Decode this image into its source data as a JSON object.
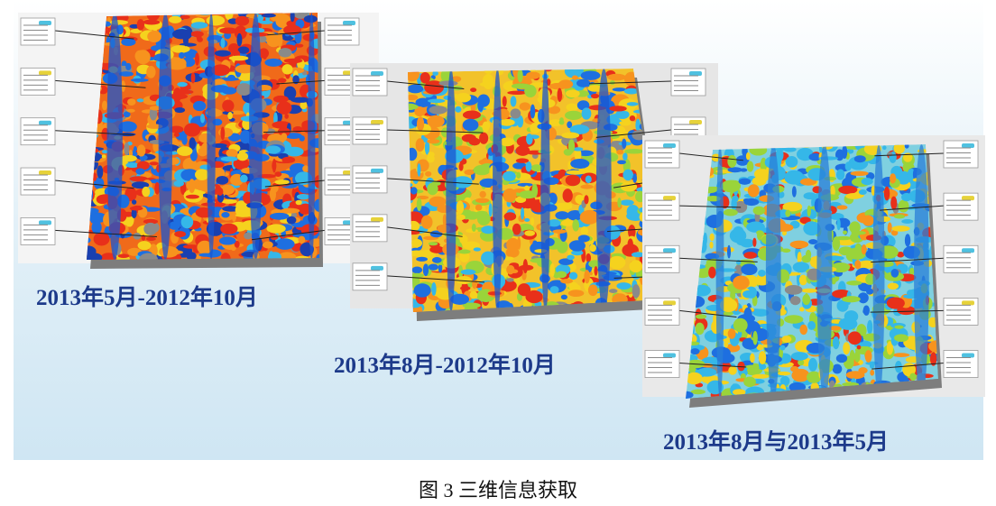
{
  "figure": {
    "panels": [
      {
        "label": "2013年5月-2012年10月"
      },
      {
        "label": "2013年8月-2012年10月"
      },
      {
        "label": "2013年8月与2013年5月"
      }
    ],
    "caption": "图 3 三维信息获取"
  }
}
